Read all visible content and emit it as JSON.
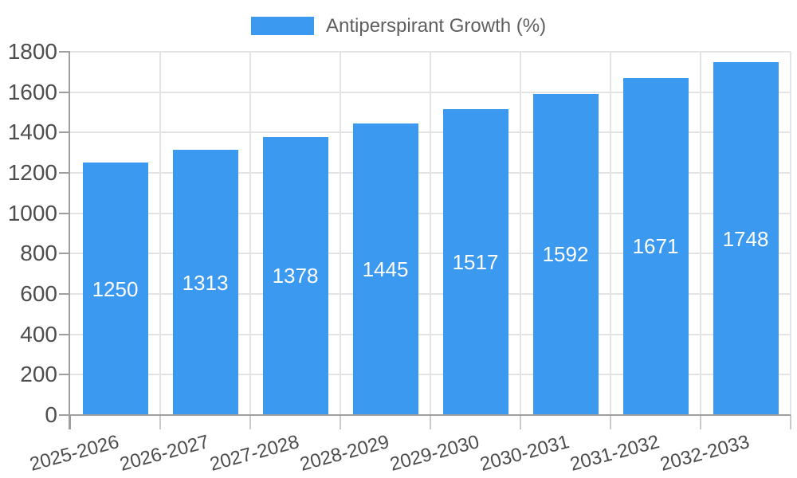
{
  "chart_data": {
    "type": "bar",
    "title": "",
    "legend": {
      "position": "top",
      "label": "Antiperspirant Growth (%)"
    },
    "categories": [
      "2025-2026",
      "2026-2027",
      "2027-2028",
      "2028-2029",
      "2029-2030",
      "2030-2031",
      "2031-2032",
      "2032-2033"
    ],
    "series": [
      {
        "name": "Antiperspirant Growth (%)",
        "values": [
          1250,
          1313,
          1378,
          1445,
          1517,
          1592,
          1671,
          1748
        ],
        "color": "#3B99F0"
      }
    ],
    "xlabel": "",
    "ylabel": "",
    "ylim": [
      0,
      1800
    ],
    "y_ticks": [
      0,
      200,
      400,
      600,
      800,
      1000,
      1200,
      1400,
      1600,
      1800
    ],
    "grid": "on",
    "x_label_rotation_deg": -15,
    "value_labels": {
      "position": "inside-center",
      "color": "#FFFFFF"
    }
  },
  "colors": {
    "bar": "#3B99F0",
    "axis_line": "#9E9E9E",
    "gridline": "#E4E4E4",
    "minor_tick": "#C9C9C9",
    "axis_text": "#4D4D4D",
    "legend_text": "#5F5F5F",
    "value_label_text": "#FFFFFF",
    "background": "#FFFFFF"
  }
}
